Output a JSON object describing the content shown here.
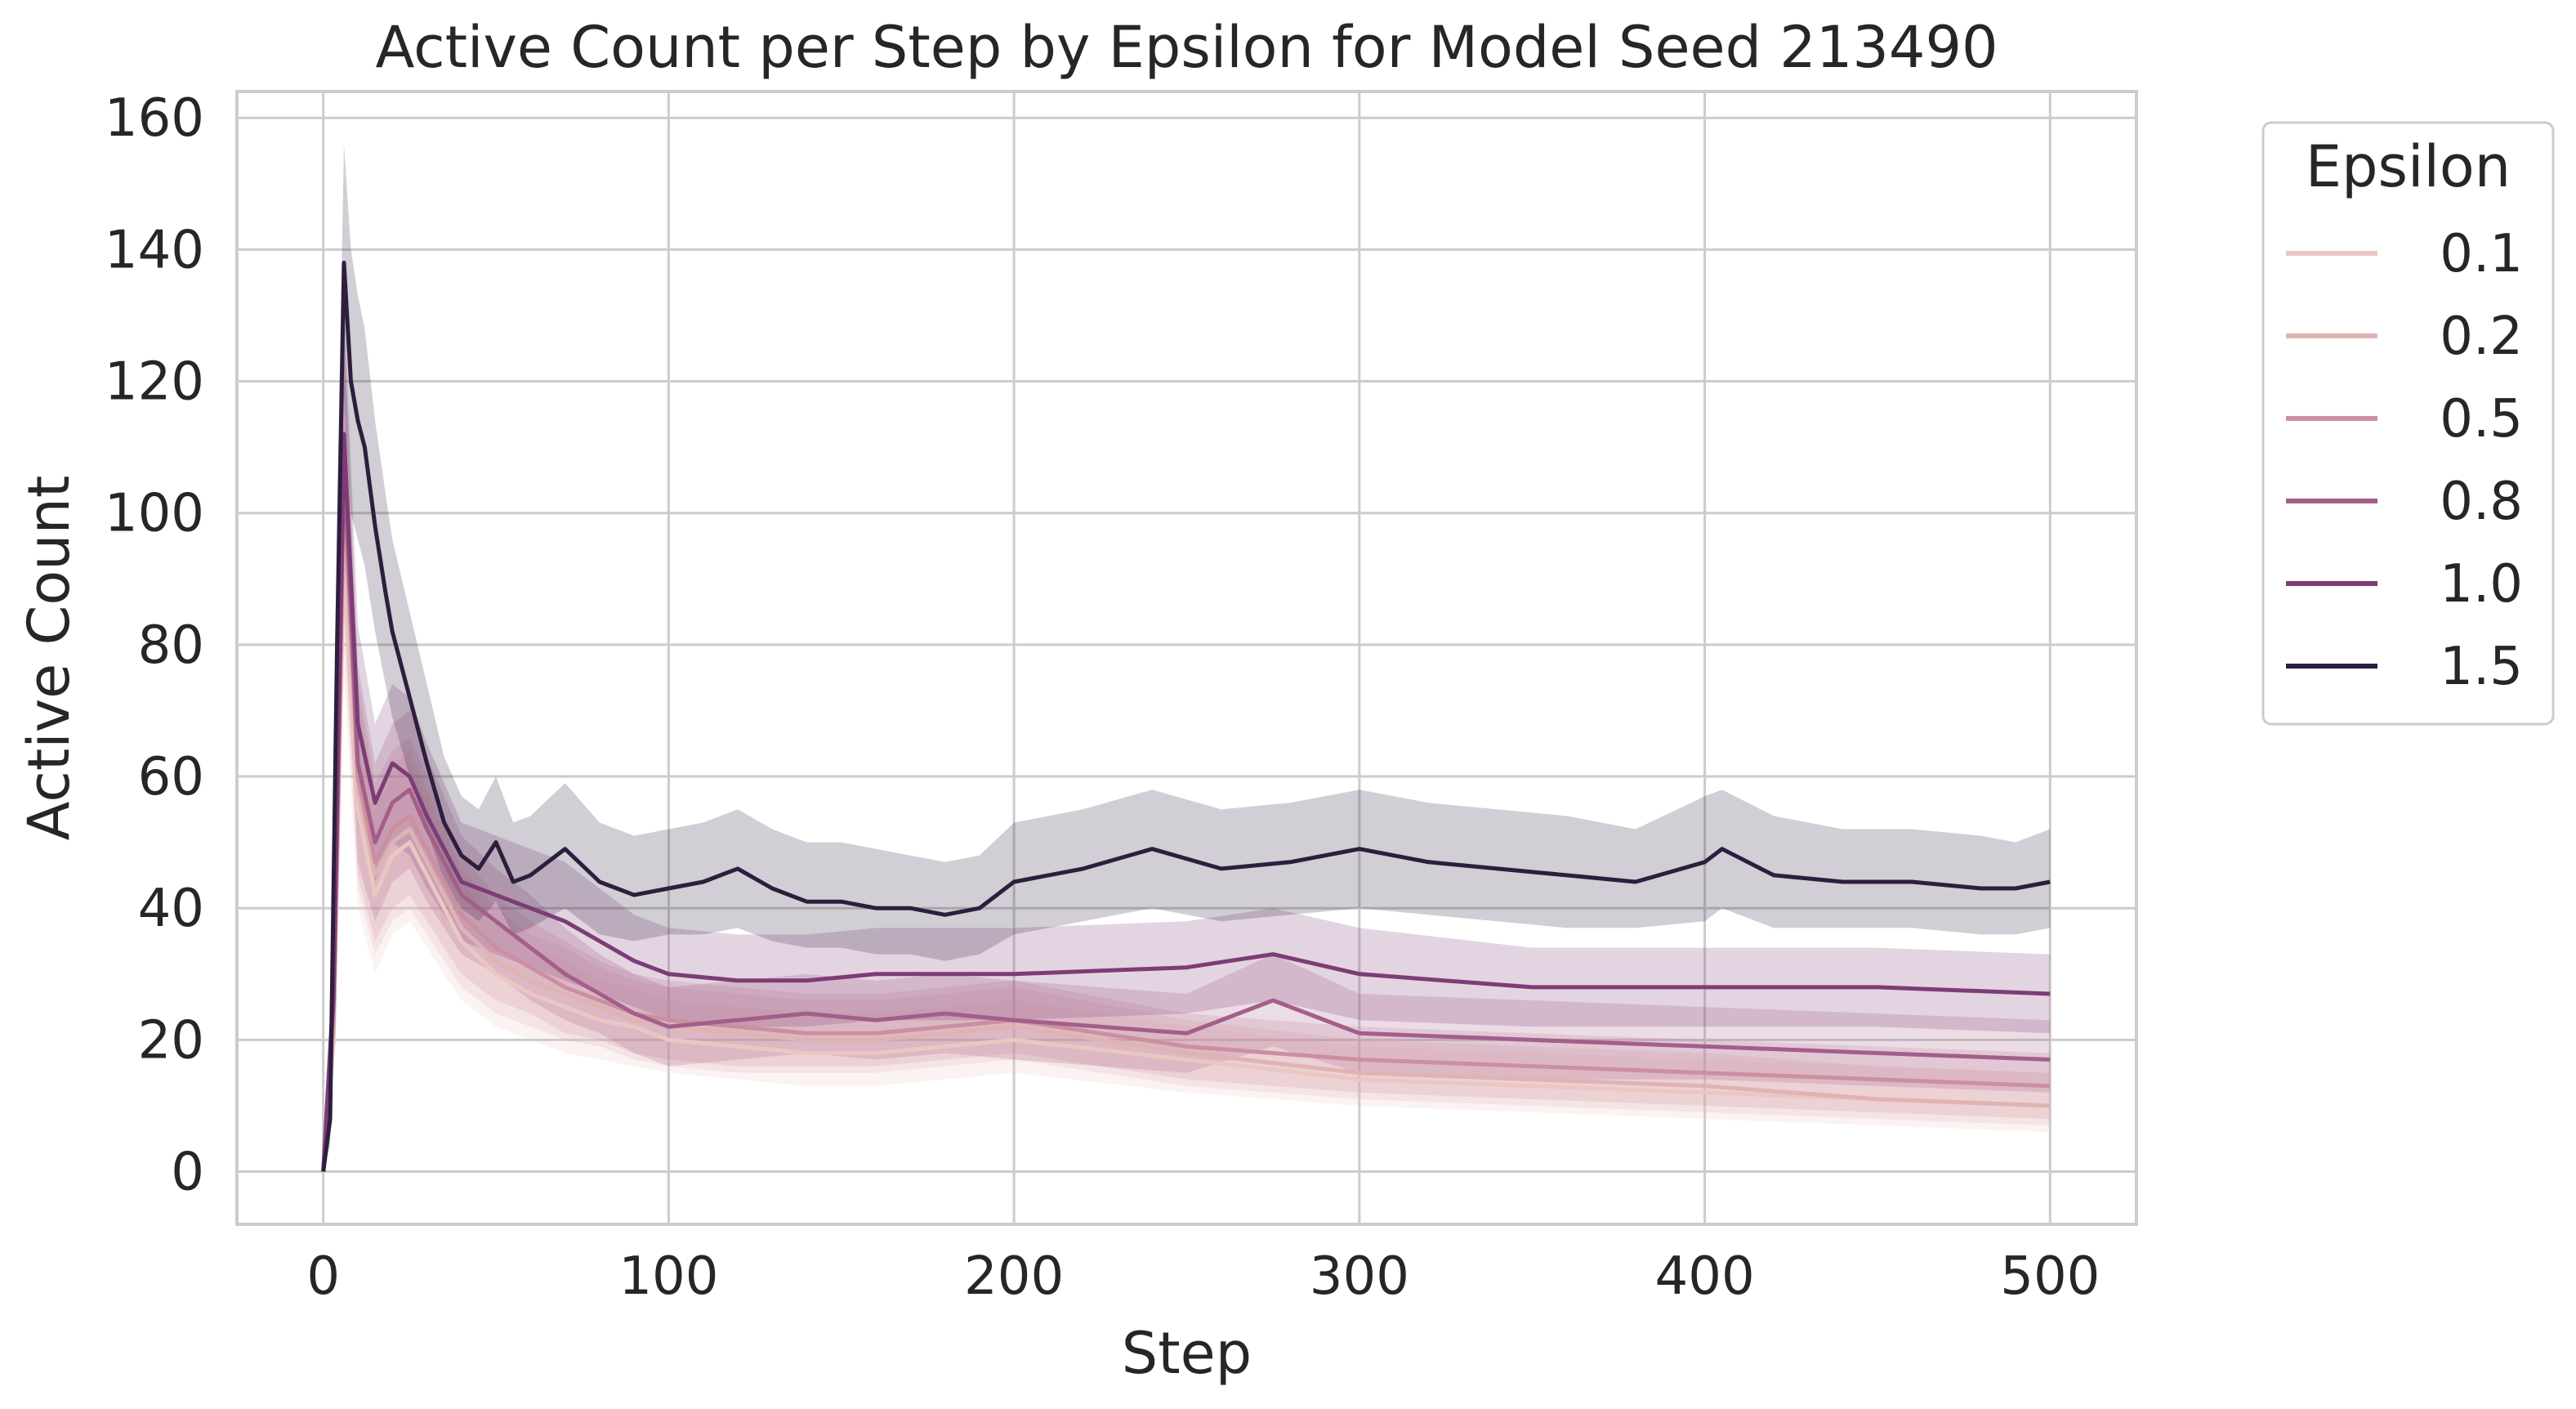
{
  "chart_data": {
    "type": "line",
    "title": "Active Count per Step by Epsilon for Model Seed 213490",
    "xlabel": "Step",
    "ylabel": "Active Count",
    "xlim": [
      -25,
      525
    ],
    "ylim": [
      -8,
      164
    ],
    "xticks": [
      0,
      100,
      200,
      300,
      400,
      500
    ],
    "yticks": [
      0,
      20,
      40,
      60,
      80,
      100,
      120,
      140,
      160
    ],
    "grid": true,
    "legend": {
      "title": "Epsilon",
      "placement": "outside-right"
    },
    "series": [
      {
        "name": "0.1",
        "color": "#ebc7c3",
        "x": [
          0,
          3,
          6,
          10,
          15,
          20,
          25,
          30,
          40,
          50,
          60,
          70,
          80,
          90,
          100,
          120,
          140,
          160,
          180,
          200,
          250,
          300,
          350,
          400,
          450,
          500
        ],
        "y": [
          0,
          20,
          95,
          55,
          42,
          48,
          50,
          45,
          35,
          30,
          27,
          25,
          23,
          22,
          20,
          19,
          18,
          18,
          19,
          20,
          17,
          14,
          13,
          12,
          11,
          10
        ],
        "lower": [
          0,
          15,
          75,
          40,
          30,
          36,
          38,
          34,
          26,
          22,
          20,
          18,
          17,
          16,
          15,
          14,
          13,
          13,
          14,
          15,
          12,
          10,
          9,
          8,
          7,
          6
        ],
        "upper": [
          0,
          25,
          115,
          70,
          55,
          60,
          62,
          56,
          44,
          38,
          34,
          32,
          29,
          28,
          26,
          25,
          24,
          24,
          25,
          26,
          22,
          19,
          18,
          17,
          16,
          15
        ]
      },
      {
        "name": "0.2",
        "color": "#e0b3b3",
        "x": [
          0,
          3,
          6,
          10,
          15,
          20,
          25,
          30,
          40,
          50,
          60,
          70,
          80,
          90,
          100,
          120,
          140,
          160,
          180,
          200,
          250,
          300,
          350,
          400,
          450,
          500
        ],
        "y": [
          0,
          22,
          100,
          58,
          45,
          50,
          52,
          47,
          37,
          32,
          29,
          27,
          25,
          23,
          22,
          21,
          20,
          20,
          21,
          22,
          18,
          15,
          14,
          13,
          11,
          10
        ],
        "lower": [
          0,
          16,
          80,
          43,
          33,
          38,
          40,
          36,
          28,
          24,
          22,
          20,
          19,
          17,
          16,
          15,
          15,
          15,
          16,
          17,
          13,
          11,
          10,
          9,
          8,
          7
        ],
        "upper": [
          0,
          28,
          120,
          73,
          57,
          62,
          64,
          58,
          46,
          40,
          36,
          34,
          31,
          29,
          28,
          27,
          26,
          26,
          27,
          28,
          23,
          20,
          19,
          18,
          16,
          15
        ]
      },
      {
        "name": "0.5",
        "color": "#cc8fa0",
        "x": [
          0,
          3,
          6,
          10,
          15,
          20,
          25,
          30,
          40,
          50,
          60,
          70,
          80,
          90,
          100,
          120,
          140,
          160,
          180,
          200,
          250,
          300,
          350,
          400,
          450,
          500
        ],
        "y": [
          0,
          24,
          105,
          60,
          47,
          52,
          54,
          49,
          39,
          34,
          31,
          28,
          26,
          24,
          23,
          22,
          21,
          21,
          22,
          23,
          19,
          17,
          16,
          15,
          14,
          13
        ],
        "lower": [
          0,
          18,
          85,
          45,
          35,
          40,
          42,
          38,
          30,
          26,
          24,
          21,
          20,
          18,
          17,
          16,
          16,
          16,
          17,
          18,
          14,
          12,
          11,
          10,
          9,
          8
        ],
        "upper": [
          0,
          30,
          125,
          75,
          59,
          64,
          66,
          60,
          48,
          42,
          38,
          35,
          32,
          30,
          29,
          28,
          27,
          27,
          28,
          29,
          24,
          22,
          21,
          20,
          19,
          18
        ]
      },
      {
        "name": "0.8",
        "color": "#a35e8a",
        "x": [
          0,
          3,
          6,
          10,
          15,
          20,
          25,
          30,
          40,
          50,
          60,
          70,
          80,
          90,
          100,
          120,
          140,
          160,
          180,
          200,
          250,
          275,
          300,
          350,
          400,
          450,
          500
        ],
        "y": [
          0,
          26,
          108,
          62,
          50,
          56,
          58,
          52,
          42,
          38,
          34,
          30,
          27,
          24,
          22,
          23,
          24,
          23,
          24,
          23,
          21,
          26,
          21,
          20,
          19,
          18,
          17
        ],
        "lower": [
          0,
          20,
          88,
          47,
          38,
          44,
          46,
          41,
          33,
          30,
          26,
          23,
          21,
          18,
          16,
          17,
          18,
          17,
          18,
          17,
          15,
          19,
          15,
          14,
          14,
          13,
          12
        ],
        "upper": [
          0,
          32,
          128,
          77,
          62,
          68,
          70,
          63,
          51,
          46,
          42,
          37,
          33,
          30,
          28,
          29,
          30,
          29,
          30,
          29,
          27,
          33,
          27,
          26,
          25,
          24,
          23
        ]
      },
      {
        "name": "1.0",
        "color": "#7e3c76",
        "x": [
          0,
          3,
          6,
          10,
          15,
          20,
          25,
          30,
          40,
          50,
          60,
          70,
          80,
          90,
          100,
          120,
          140,
          160,
          180,
          200,
          250,
          275,
          300,
          350,
          400,
          450,
          500
        ],
        "y": [
          0,
          28,
          112,
          68,
          56,
          62,
          60,
          54,
          44,
          42,
          40,
          38,
          35,
          32,
          30,
          29,
          29,
          30,
          30,
          30,
          31,
          33,
          30,
          28,
          28,
          28,
          27
        ],
        "lower": [
          0,
          22,
          92,
          53,
          44,
          50,
          48,
          43,
          35,
          33,
          31,
          29,
          27,
          25,
          23,
          22,
          22,
          23,
          23,
          23,
          24,
          26,
          23,
          22,
          22,
          22,
          21
        ],
        "upper": [
          0,
          34,
          132,
          83,
          68,
          74,
          72,
          65,
          53,
          51,
          49,
          47,
          43,
          39,
          37,
          36,
          36,
          37,
          37,
          37,
          38,
          40,
          37,
          34,
          34,
          34,
          33
        ]
      },
      {
        "name": "1.5",
        "color": "#2d1e3e",
        "x": [
          0,
          2,
          4,
          6,
          8,
          10,
          12,
          15,
          18,
          20,
          25,
          30,
          35,
          40,
          45,
          50,
          55,
          60,
          70,
          80,
          90,
          100,
          110,
          120,
          130,
          140,
          150,
          160,
          170,
          180,
          190,
          200,
          220,
          240,
          260,
          280,
          300,
          320,
          340,
          360,
          380,
          400,
          405,
          420,
          440,
          460,
          480,
          490,
          500
        ],
        "y": [
          0,
          8,
          80,
          138,
          120,
          114,
          110,
          98,
          88,
          82,
          72,
          62,
          53,
          48,
          46,
          50,
          44,
          45,
          49,
          44,
          42,
          43,
          44,
          46,
          43,
          41,
          41,
          40,
          40,
          39,
          40,
          44,
          46,
          49,
          46,
          47,
          49,
          47,
          46,
          45,
          44,
          47,
          49,
          45,
          44,
          44,
          43,
          43,
          44
        ],
        "lower": [
          0,
          4,
          60,
          118,
          100,
          96,
          92,
          82,
          74,
          69,
          60,
          52,
          44,
          40,
          38,
          41,
          36,
          37,
          40,
          36,
          35,
          36,
          36,
          37,
          35,
          34,
          34,
          33,
          33,
          32,
          33,
          36,
          38,
          40,
          38,
          39,
          40,
          39,
          38,
          37,
          37,
          38,
          40,
          37,
          37,
          37,
          36,
          36,
          37
        ],
        "upper": [
          0,
          12,
          100,
          156,
          140,
          133,
          128,
          114,
          103,
          96,
          85,
          74,
          63,
          57,
          55,
          60,
          53,
          54,
          59,
          53,
          51,
          52,
          53,
          55,
          52,
          50,
          50,
          49,
          48,
          47,
          48,
          53,
          55,
          58,
          55,
          56,
          58,
          56,
          55,
          54,
          52,
          57,
          58,
          54,
          52,
          52,
          51,
          50,
          52
        ]
      }
    ]
  }
}
